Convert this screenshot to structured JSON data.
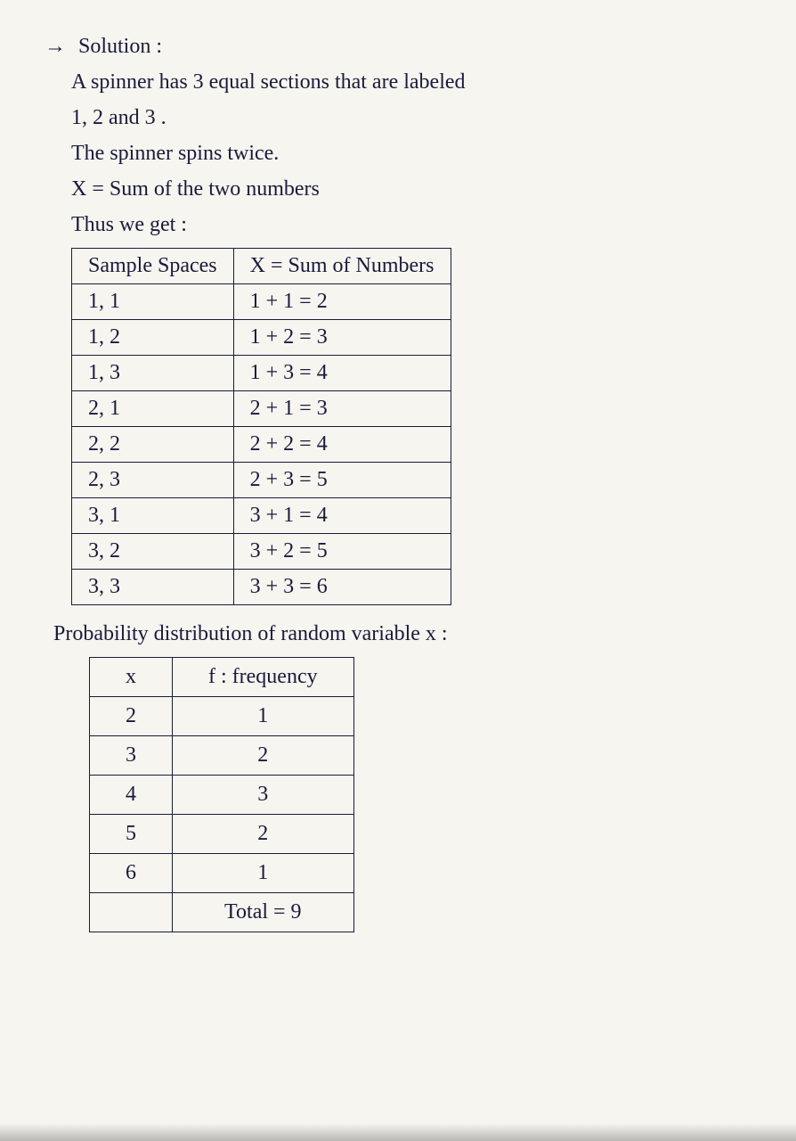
{
  "heading_arrow": "→",
  "heading": "Solution :",
  "intro_line1": "A spinner has 3 equal sections that are labeled",
  "intro_line2": "1, 2 and 3 .",
  "line3": "The spinner spins twice.",
  "line4": "X = Sum of the two numbers",
  "line5": "Thus we get :",
  "table1": {
    "header_left": "Sample Spaces",
    "header_right": "X = Sum of Numbers",
    "rows": [
      {
        "l": "1, 1",
        "r": "1 + 1 = 2"
      },
      {
        "l": "1, 2",
        "r": "1 + 2 = 3"
      },
      {
        "l": "1, 3",
        "r": "1 + 3 = 4"
      },
      {
        "l": "2, 1",
        "r": "2 + 1 = 3"
      },
      {
        "l": "2, 2",
        "r": "2 + 2 = 4"
      },
      {
        "l": "2, 3",
        "r": "2 + 3 = 5"
      },
      {
        "l": "3, 1",
        "r": "3 + 1 = 4"
      },
      {
        "l": "3, 2",
        "r": "3 + 2 = 5"
      },
      {
        "l": "3, 3",
        "r": "3 + 3 = 6"
      }
    ]
  },
  "prob_line": "Probability distribution of random variable x :",
  "table2": {
    "header_left": "x",
    "header_right": "f : frequency",
    "rows": [
      {
        "l": "2",
        "r": "1"
      },
      {
        "l": "3",
        "r": "2"
      },
      {
        "l": "4",
        "r": "3"
      },
      {
        "l": "5",
        "r": "2"
      },
      {
        "l": "6",
        "r": "1"
      }
    ],
    "total_left": "",
    "total_right": "Total = 9"
  },
  "colors": {
    "ink": "#1a1a3a",
    "paper": "#f7f5f0",
    "table_border": "#1a1a3a"
  },
  "font": {
    "family": "Comic Sans MS / handwriting",
    "size_body": 24,
    "size_heading": 24
  }
}
